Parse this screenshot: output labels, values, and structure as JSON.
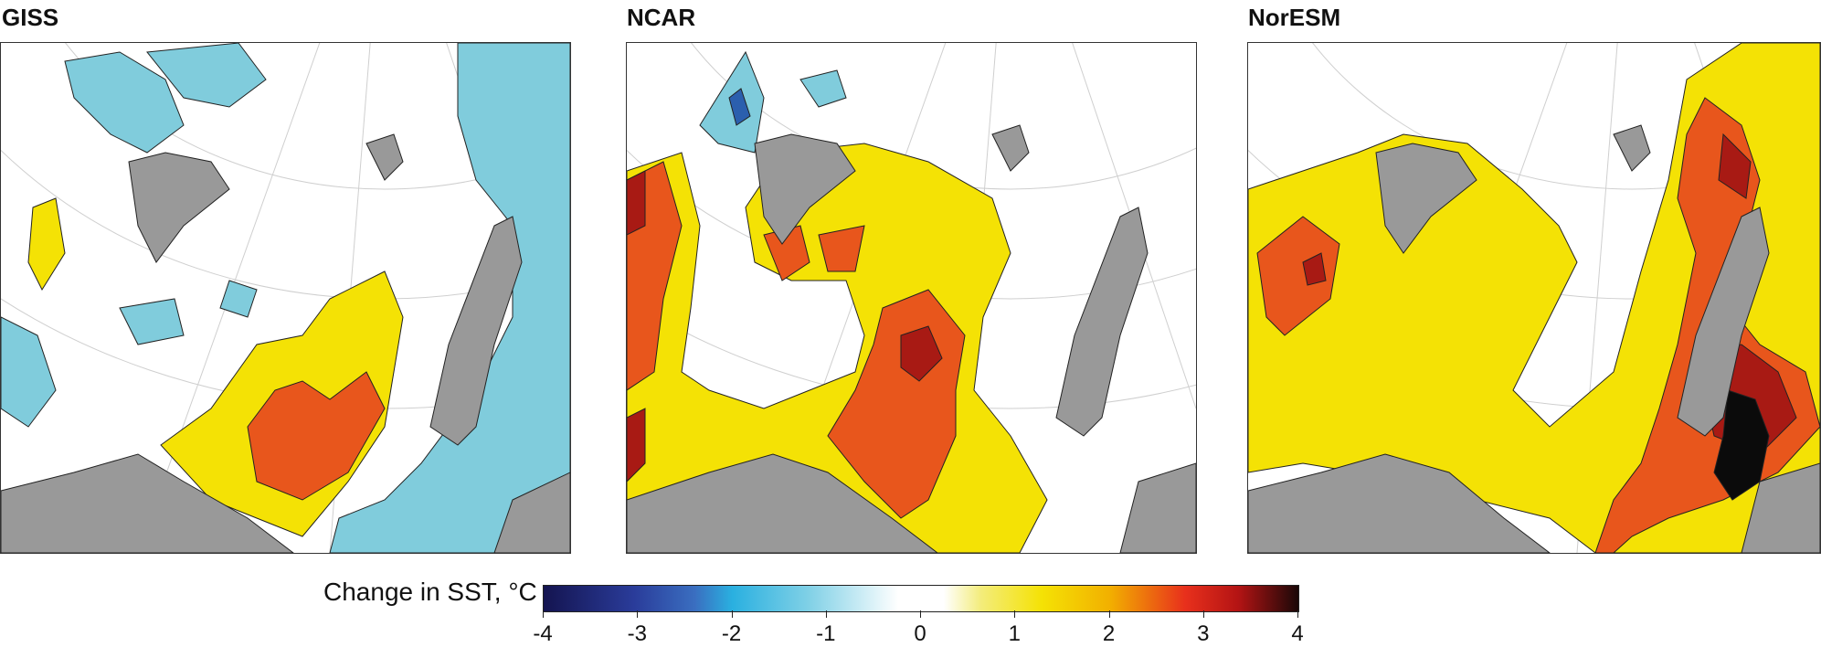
{
  "panels": [
    {
      "title": "GISS"
    },
    {
      "title": "NCAR"
    },
    {
      "title": "NorESM"
    }
  ],
  "colorbar": {
    "label": "Change in SST, °C",
    "ticks": [
      "-4",
      "-3",
      "-2",
      "-1",
      "0",
      "1",
      "2",
      "3",
      "4"
    ],
    "range": [
      -4,
      4
    ]
  },
  "colors": {
    "land": "#999999",
    "cool_light": "#80ccdc",
    "cool_dark": "#2b5fae",
    "neutral": "#ffffff",
    "warm_1": "#f4e205",
    "warm_2": "#e8561c",
    "warm_3": "#a81a14",
    "warm_4": "#0b0b0b"
  }
}
